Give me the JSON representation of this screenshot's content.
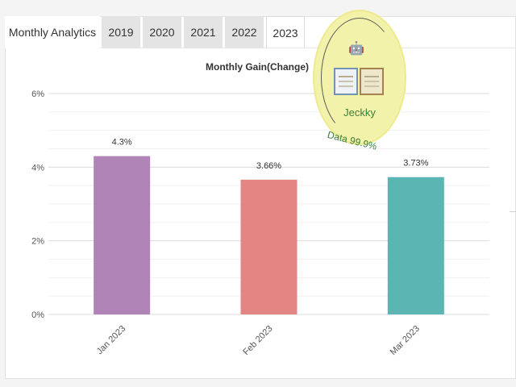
{
  "tabs": {
    "title": "Monthly Analytics",
    "years": [
      "2019",
      "2020",
      "2021",
      "2022",
      "2023"
    ],
    "active_index": 4
  },
  "chart_data": {
    "type": "bar",
    "title": "Monthly Gain(Change)",
    "categories": [
      "Jan 2023",
      "Feb 2023",
      "Mar 2023"
    ],
    "values": [
      4.3,
      3.66,
      3.73
    ],
    "data_labels": [
      "4.3%",
      "3.66%",
      "3.73%"
    ],
    "colors": [
      "#b084b6",
      "#e38583",
      "#5bb5b3"
    ],
    "ylim": [
      0,
      6
    ],
    "y_ticks": [
      0,
      2,
      4,
      6
    ],
    "y_tick_labels": [
      "0%",
      "2%",
      "4%",
      "6%"
    ],
    "grid": true,
    "xlabel": "",
    "ylabel": ""
  },
  "watermark": {
    "name": "Jeckky",
    "subtitle": "Data 99.9%",
    "icon": "robot-icon"
  }
}
